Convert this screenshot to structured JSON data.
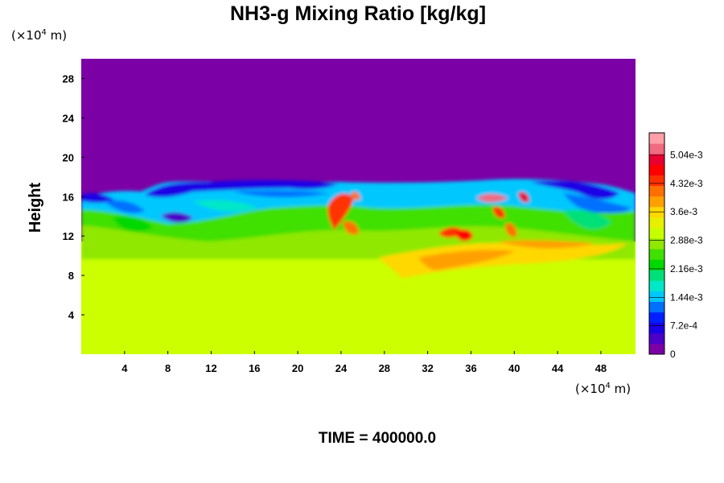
{
  "chart_data": {
    "type": "heatmap",
    "title": "NH3-g Mixing Ratio [kg/kg]",
    "ylabel": "Height",
    "x_unit": {
      "prefix": "(×10",
      "exp": "4",
      "suffix": " m)"
    },
    "y_unit": {
      "prefix": "(×10",
      "exp": "4",
      "suffix": " m)"
    },
    "x_ticks": [
      "4",
      "8",
      "12",
      "16",
      "20",
      "24",
      "28",
      "32",
      "36",
      "40",
      "44",
      "48"
    ],
    "x_tick_values": [
      4,
      8,
      12,
      16,
      20,
      24,
      28,
      32,
      36,
      40,
      44,
      48
    ],
    "y_ticks": [
      "4",
      "8",
      "12",
      "16",
      "20",
      "24",
      "28"
    ],
    "y_tick_values": [
      4,
      8,
      12,
      16,
      20,
      24,
      28
    ],
    "xlim": [
      0,
      51.2
    ],
    "ylim": [
      0,
      30
    ],
    "colorbar": {
      "labels": [
        "0",
        "7.2e-4",
        "1.44e-3",
        "2.16e-3",
        "2.88e-3",
        "3.6e-3",
        "4.32e-3",
        "5.04e-3"
      ],
      "values": [
        0,
        0.00072,
        0.00144,
        0.00216,
        0.00288,
        0.0036,
        0.00432,
        0.00504
      ],
      "max": 0.0056,
      "colors": [
        "#7b00a6",
        "#4b00c8",
        "#1a00e6",
        "#0020ff",
        "#0070ff",
        "#00c8ff",
        "#00e8c8",
        "#00e078",
        "#00d800",
        "#40e000",
        "#90e800",
        "#c8ff00",
        "#e6f000",
        "#ffd800",
        "#ffa000",
        "#ff7000",
        "#ff3000",
        "#ff0000",
        "#e80030",
        "#f06a80",
        "#ffa0a8"
      ]
    },
    "field_description": {
      "upper_layer_value": 0,
      "lower_layer_value": 0.00345,
      "mixed_layer_range_y": [
        9,
        17.5
      ]
    },
    "time_label": "TIME = 400000.0"
  }
}
